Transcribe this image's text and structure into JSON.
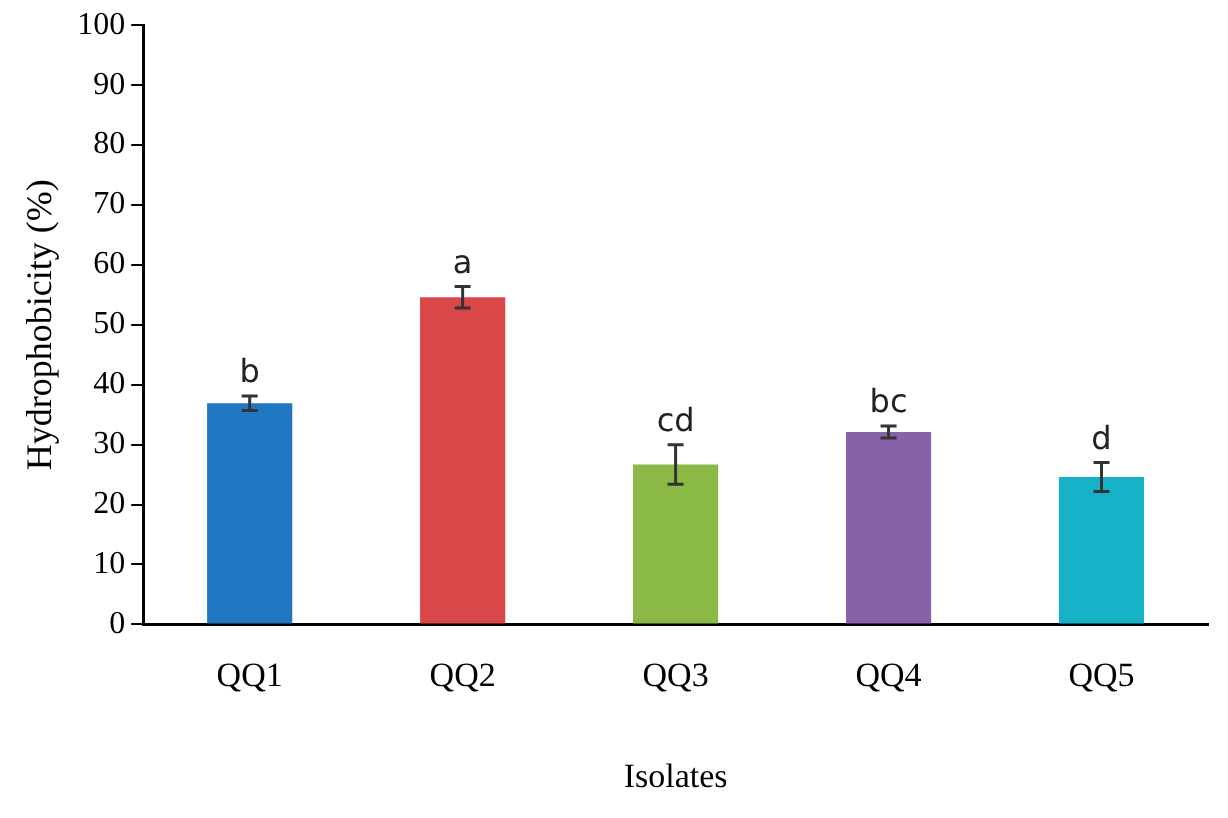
{
  "chart_data": {
    "type": "bar",
    "xlabel": "Isolates",
    "ylabel": "Hydrophobicity (%)",
    "categories": [
      "QQ1",
      "QQ2",
      "QQ3",
      "QQ4",
      "QQ5"
    ],
    "values": [
      36.9,
      54.6,
      26.7,
      32.1,
      24.6
    ],
    "errors": [
      1.2,
      1.8,
      3.3,
      1,
      2.4
    ],
    "colors": [
      "#1f78c1",
      "#d94748",
      "#8ab945",
      "#8662a6",
      "#17b2c8"
    ],
    "ylim": [
      0,
      100
    ],
    "yticks": [
      0,
      10,
      20,
      30,
      40,
      50,
      60,
      70,
      80,
      90,
      100
    ],
    "grid": false,
    "legend": false,
    "annotations": [
      {
        "text": "b",
        "x": "QQ1",
        "y": 38.1
      },
      {
        "text": "a",
        "x": "QQ2",
        "y": 56.4
      },
      {
        "text": "cd",
        "x": "QQ3",
        "y": 30
      },
      {
        "text": "bc",
        "x": "QQ4",
        "y": 33.1
      },
      {
        "text": "d",
        "x": "QQ5",
        "y": 27
      }
    ]
  }
}
